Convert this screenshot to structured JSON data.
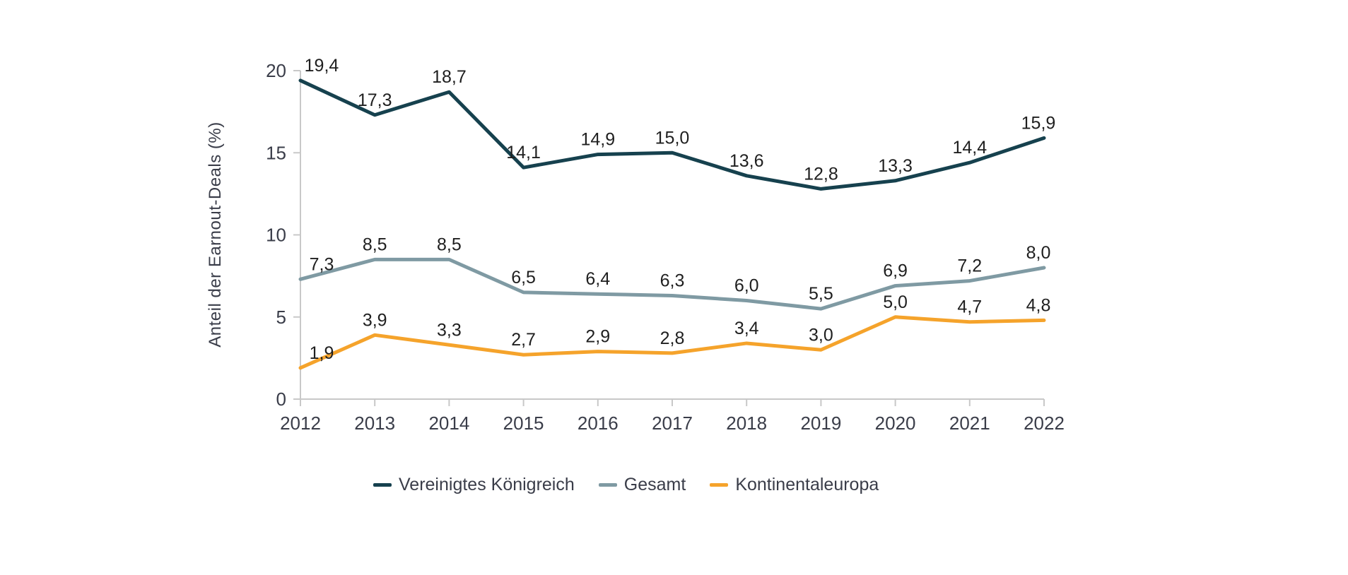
{
  "chart_data": {
    "type": "line",
    "title": "",
    "xlabel": "",
    "ylabel": "Anteil der Earnout-Deals (%)",
    "categories": [
      "2012",
      "2013",
      "2014",
      "2015",
      "2016",
      "2017",
      "2018",
      "2019",
      "2020",
      "2021",
      "2022"
    ],
    "y_ticks": [
      0,
      5,
      10,
      15,
      20
    ],
    "ylim": [
      0,
      20
    ],
    "grid": false,
    "legend_position": "bottom",
    "decimal_separator": ",",
    "series": [
      {
        "name": "Vereinigtes Königreich",
        "color": "#16414e",
        "values": [
          19.4,
          17.3,
          18.7,
          14.1,
          14.9,
          15.0,
          13.6,
          12.8,
          13.3,
          14.4,
          15.9
        ]
      },
      {
        "name": "Gesamt",
        "color": "#7f9aa3",
        "values": [
          7.3,
          8.5,
          8.5,
          6.5,
          6.4,
          6.3,
          6.0,
          5.5,
          6.9,
          7.2,
          8.0
        ]
      },
      {
        "name": "Kontinentaleuropa",
        "color": "#f5a32b",
        "values": [
          1.9,
          3.9,
          3.3,
          2.7,
          2.9,
          2.8,
          3.4,
          3.0,
          5.0,
          4.7,
          4.8
        ]
      }
    ]
  },
  "colors": {
    "background": "#ffffff",
    "axis_line": "#c8c8c8",
    "tick_label": "#3a3d49",
    "data_label": "#1f1f1f"
  }
}
